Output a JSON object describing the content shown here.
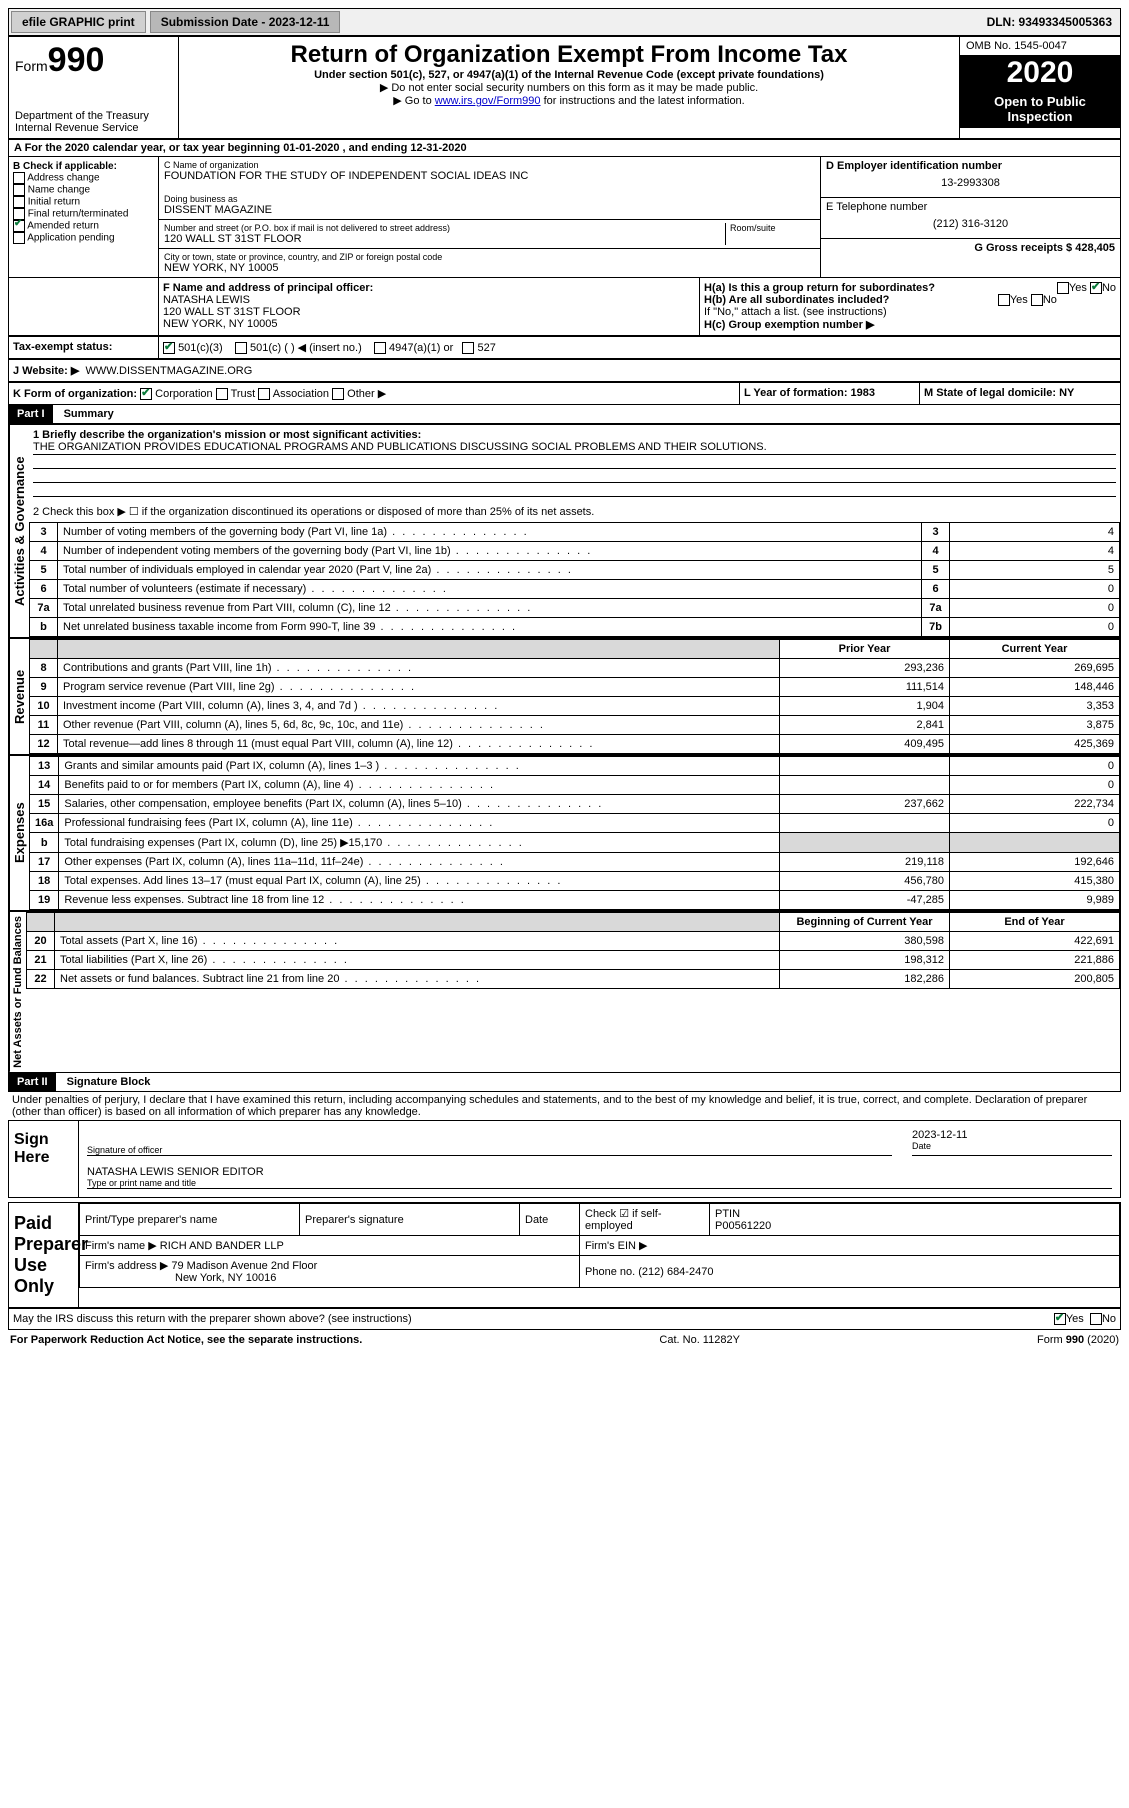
{
  "topbar": {
    "efile": "efile GRAPHIC print",
    "submission_label": "Submission Date - 2023-12-11",
    "dln_label": "DLN: 93493345005363"
  },
  "header": {
    "form_label": "Form",
    "form_number": "990",
    "dept": "Department of the Treasury",
    "irs": "Internal Revenue Service",
    "title": "Return of Organization Exempt From Income Tax",
    "subtitle": "Under section 501(c), 527, or 4947(a)(1) of the Internal Revenue Code (except private foundations)",
    "note1": "▶ Do not enter social security numbers on this form as it may be made public.",
    "note2_pre": "▶ Go to ",
    "note2_link": "www.irs.gov/Form990",
    "note2_post": " for instructions and the latest information.",
    "omb": "OMB No. 1545-0047",
    "year": "2020",
    "open": "Open to Public Inspection"
  },
  "sectionA": {
    "text": "A For the 2020 calendar year, or tax year beginning 01-01-2020   , and ending 12-31-2020"
  },
  "boxB": {
    "label": "B Check if applicable:",
    "items": [
      "Address change",
      "Name change",
      "Initial return",
      "Final return/terminated",
      "Amended return",
      "Application pending"
    ],
    "checked_idx": 4
  },
  "boxC": {
    "name_label": "C Name of organization",
    "name": "FOUNDATION FOR THE STUDY OF INDEPENDENT SOCIAL IDEAS INC",
    "dba_label": "Doing business as",
    "dba": "DISSENT MAGAZINE",
    "street_label": "Number and street (or P.O. box if mail is not delivered to street address)",
    "room_label": "Room/suite",
    "street": "120 WALL ST 31ST FLOOR",
    "city_label": "City or town, state or province, country, and ZIP or foreign postal code",
    "city": "NEW YORK, NY  10005"
  },
  "boxD": {
    "label": "D Employer identification number",
    "value": "13-2993308"
  },
  "boxE": {
    "label": "E Telephone number",
    "value": "(212) 316-3120"
  },
  "boxG": {
    "label": "G Gross receipts $ 428,405"
  },
  "boxF": {
    "label": "F  Name and address of principal officer:",
    "line1": "NATASHA LEWIS",
    "line2": "120 WALL ST 31ST FLOOR",
    "line3": "NEW YORK, NY  10005"
  },
  "boxH": {
    "a": "H(a)  Is this a group return for subordinates?",
    "a_yes": "Yes",
    "a_no": "No",
    "b": "H(b)  Are all subordinates included?",
    "b_note": "If \"No,\" attach a list. (see instructions)",
    "c": "H(c)  Group exemption number ▶"
  },
  "boxI": {
    "label": "Tax-exempt status:",
    "opts": [
      "501(c)(3)",
      "501(c) (  ) ◀ (insert no.)",
      "4947(a)(1) or",
      "527"
    ]
  },
  "boxJ": {
    "label": "J   Website: ▶",
    "value": "WWW.DISSENTMAGAZINE.ORG"
  },
  "boxK": {
    "label": "K Form of organization:",
    "opts": [
      "Corporation",
      "Trust",
      "Association",
      "Other ▶"
    ]
  },
  "boxL": {
    "label": "L Year of formation: 1983"
  },
  "boxM": {
    "label": "M State of legal domicile: NY"
  },
  "part1": {
    "header": "Part I",
    "title": "Summary"
  },
  "activities": {
    "vert": "Activities & Governance",
    "line1_label": "1   Briefly describe the organization's mission or most significant activities:",
    "line1_text": "THE ORGANIZATION PROVIDES EDUCATIONAL PROGRAMS AND PUBLICATIONS DISCUSSING SOCIAL PROBLEMS AND THEIR SOLUTIONS.",
    "line2": "2   Check this box ▶ ☐  if the organization discontinued its operations or disposed of more than 25% of its net assets.",
    "rows": [
      {
        "n": "3",
        "label": "Number of voting members of the governing body (Part VI, line 1a)",
        "box": "3",
        "val": "4"
      },
      {
        "n": "4",
        "label": "Number of independent voting members of the governing body (Part VI, line 1b)",
        "box": "4",
        "val": "4"
      },
      {
        "n": "5",
        "label": "Total number of individuals employed in calendar year 2020 (Part V, line 2a)",
        "box": "5",
        "val": "5"
      },
      {
        "n": "6",
        "label": "Total number of volunteers (estimate if necessary)",
        "box": "6",
        "val": "0"
      },
      {
        "n": "7a",
        "label": "Total unrelated business revenue from Part VIII, column (C), line 12",
        "box": "7a",
        "val": "0"
      },
      {
        "n": "b",
        "label": "Net unrelated business taxable income from Form 990-T, line 39",
        "box": "7b",
        "val": "0"
      }
    ]
  },
  "revenue": {
    "vert": "Revenue",
    "head_prior": "Prior Year",
    "head_current": "Current Year",
    "rows": [
      {
        "n": "8",
        "label": "Contributions and grants (Part VIII, line 1h)",
        "p": "293,236",
        "c": "269,695"
      },
      {
        "n": "9",
        "label": "Program service revenue (Part VIII, line 2g)",
        "p": "111,514",
        "c": "148,446"
      },
      {
        "n": "10",
        "label": "Investment income (Part VIII, column (A), lines 3, 4, and 7d )",
        "p": "1,904",
        "c": "3,353"
      },
      {
        "n": "11",
        "label": "Other revenue (Part VIII, column (A), lines 5, 6d, 8c, 9c, 10c, and 11e)",
        "p": "2,841",
        "c": "3,875"
      },
      {
        "n": "12",
        "label": "Total revenue—add lines 8 through 11 (must equal Part VIII, column (A), line 12)",
        "p": "409,495",
        "c": "425,369"
      }
    ]
  },
  "expenses": {
    "vert": "Expenses",
    "rows": [
      {
        "n": "13",
        "label": "Grants and similar amounts paid (Part IX, column (A), lines 1–3 )",
        "p": "",
        "c": "0"
      },
      {
        "n": "14",
        "label": "Benefits paid to or for members (Part IX, column (A), line 4)",
        "p": "",
        "c": "0"
      },
      {
        "n": "15",
        "label": "Salaries, other compensation, employee benefits (Part IX, column (A), lines 5–10)",
        "p": "237,662",
        "c": "222,734"
      },
      {
        "n": "16a",
        "label": "Professional fundraising fees (Part IX, column (A), line 11e)",
        "p": "",
        "c": "0"
      },
      {
        "n": "b",
        "label": "Total fundraising expenses (Part IX, column (D), line 25) ▶15,170",
        "p": "gray",
        "c": "gray"
      },
      {
        "n": "17",
        "label": "Other expenses (Part IX, column (A), lines 11a–11d, 11f–24e)",
        "p": "219,118",
        "c": "192,646"
      },
      {
        "n": "18",
        "label": "Total expenses. Add lines 13–17 (must equal Part IX, column (A), line 25)",
        "p": "456,780",
        "c": "415,380"
      },
      {
        "n": "19",
        "label": "Revenue less expenses. Subtract line 18 from line 12",
        "p": "-47,285",
        "c": "9,989"
      }
    ]
  },
  "netassets": {
    "vert": "Net Assets or Fund Balances",
    "head_begin": "Beginning of Current Year",
    "head_end": "End of Year",
    "rows": [
      {
        "n": "20",
        "label": "Total assets (Part X, line 16)",
        "p": "380,598",
        "c": "422,691"
      },
      {
        "n": "21",
        "label": "Total liabilities (Part X, line 26)",
        "p": "198,312",
        "c": "221,886"
      },
      {
        "n": "22",
        "label": "Net assets or fund balances. Subtract line 21 from line 20",
        "p": "182,286",
        "c": "200,805"
      }
    ]
  },
  "part2": {
    "header": "Part II",
    "title": "Signature Block",
    "penalties": "Under penalties of perjury, I declare that I have examined this return, including accompanying schedules and statements, and to the best of my knowledge and belief, it is true, correct, and complete. Declaration of preparer (other than officer) is based on all information of which preparer has any knowledge."
  },
  "sign": {
    "here": "Sign Here",
    "sig_officer": "Signature of officer",
    "date_label": "Date",
    "date": "2023-12-11",
    "name": "NATASHA LEWIS  SENIOR EDITOR",
    "name_label": "Type or print name and title"
  },
  "preparer": {
    "here": "Paid Preparer Use Only",
    "print_label": "Print/Type preparer's name",
    "sig_label": "Preparer's signature",
    "date_label": "Date",
    "check_label": "Check ☑ if self-employed",
    "ptin_label": "PTIN",
    "ptin": "P00561220",
    "firm_name_label": "Firm's name   ▶",
    "firm_name": "RICH AND BANDER LLP",
    "firm_ein_label": "Firm's EIN ▶",
    "firm_addr_label": "Firm's address ▶",
    "firm_addr1": "79 Madison Avenue 2nd Floor",
    "firm_addr2": "New York, NY  10016",
    "phone_label": "Phone no. (212) 684-2470"
  },
  "discuss": {
    "label": "May the IRS discuss this return with the preparer shown above? (see instructions)",
    "yes": "Yes",
    "no": "No"
  },
  "footer": {
    "left": "For Paperwork Reduction Act Notice, see the separate instructions.",
    "mid": "Cat. No. 11282Y",
    "right": "Form 990 (2020)"
  }
}
